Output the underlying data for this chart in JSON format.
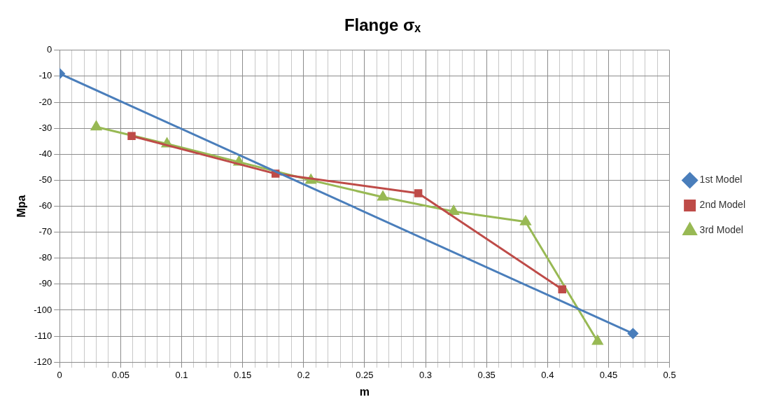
{
  "chart_data": {
    "type": "line",
    "title": "Flange σₓ",
    "xlabel": "m",
    "ylabel": "Mpa",
    "legend": "right",
    "grid": true,
    "xlim": [
      0,
      0.5
    ],
    "ylim": [
      -120,
      0
    ],
    "xticks": [
      0,
      {
        "value": 0.01,
        "label": null
      },
      {
        "value": 0.02,
        "label": null
      },
      {
        "value": 0.03,
        "label": null
      },
      {
        "value": 0.04,
        "label": null
      },
      0.05,
      {
        "value": 0.06,
        "label": null
      },
      {
        "value": 0.07,
        "label": null
      },
      {
        "value": 0.08,
        "label": null
      },
      {
        "value": 0.09,
        "label": null
      },
      0.1,
      {
        "value": 0.11,
        "label": null
      },
      {
        "value": 0.12,
        "label": null
      },
      {
        "value": 0.13,
        "label": null
      },
      {
        "value": 0.14,
        "label": null
      },
      0.15,
      {
        "value": 0.16,
        "label": null
      },
      {
        "value": 0.17,
        "label": null
      },
      {
        "value": 0.18,
        "label": null
      },
      {
        "value": 0.19,
        "label": null
      },
      0.2,
      {
        "value": 0.21,
        "label": null
      },
      {
        "value": 0.22,
        "label": null
      },
      {
        "value": 0.23,
        "label": null
      },
      {
        "value": 0.24,
        "label": null
      },
      0.25,
      {
        "value": 0.26,
        "label": null
      },
      {
        "value": 0.27,
        "label": null
      },
      {
        "value": 0.28,
        "label": null
      },
      {
        "value": 0.29,
        "label": null
      },
      0.3,
      {
        "value": 0.31,
        "label": null
      },
      {
        "value": 0.32,
        "label": null
      },
      {
        "value": 0.33,
        "label": null
      },
      {
        "value": 0.34,
        "label": null
      },
      0.35,
      {
        "value": 0.36,
        "label": null
      },
      {
        "value": 0.37,
        "label": null
      },
      {
        "value": 0.38,
        "label": null
      },
      {
        "value": 0.39,
        "label": null
      },
      0.4,
      {
        "value": 0.41,
        "label": null
      },
      {
        "value": 0.42,
        "label": null
      },
      {
        "value": 0.43,
        "label": null
      },
      {
        "value": 0.44,
        "label": null
      },
      0.45,
      {
        "value": 0.46,
        "label": null
      },
      {
        "value": 0.47,
        "label": null
      },
      {
        "value": 0.48,
        "label": null
      },
      {
        "value": 0.49,
        "label": null
      },
      0.5
    ],
    "yticks": [
      0,
      -10,
      -20,
      -30,
      -40,
      -50,
      -60,
      -70,
      -80,
      -90,
      -100,
      -110,
      -120
    ],
    "series": [
      {
        "name": "1st Model",
        "color": "#4a7ebb",
        "marker": "diamond",
        "x": [
          0,
          0.47
        ],
        "values": [
          -9,
          -109
        ]
      },
      {
        "name": "2nd Model",
        "color": "#be4b48",
        "marker": "square",
        "x": [
          0.059,
          0.177,
          0.294,
          0.412
        ],
        "values": [
          -33,
          -47.5,
          -55,
          -92
        ]
      },
      {
        "name": "3rd Model",
        "color": "#98b954",
        "marker": "triangle",
        "x": [
          0.03,
          0.088,
          0.147,
          0.206,
          0.265,
          0.323,
          0.382,
          0.441
        ],
        "values": [
          -29.5,
          -36,
          -43,
          -50,
          -56.5,
          -62,
          -66,
          -112
        ]
      }
    ]
  }
}
